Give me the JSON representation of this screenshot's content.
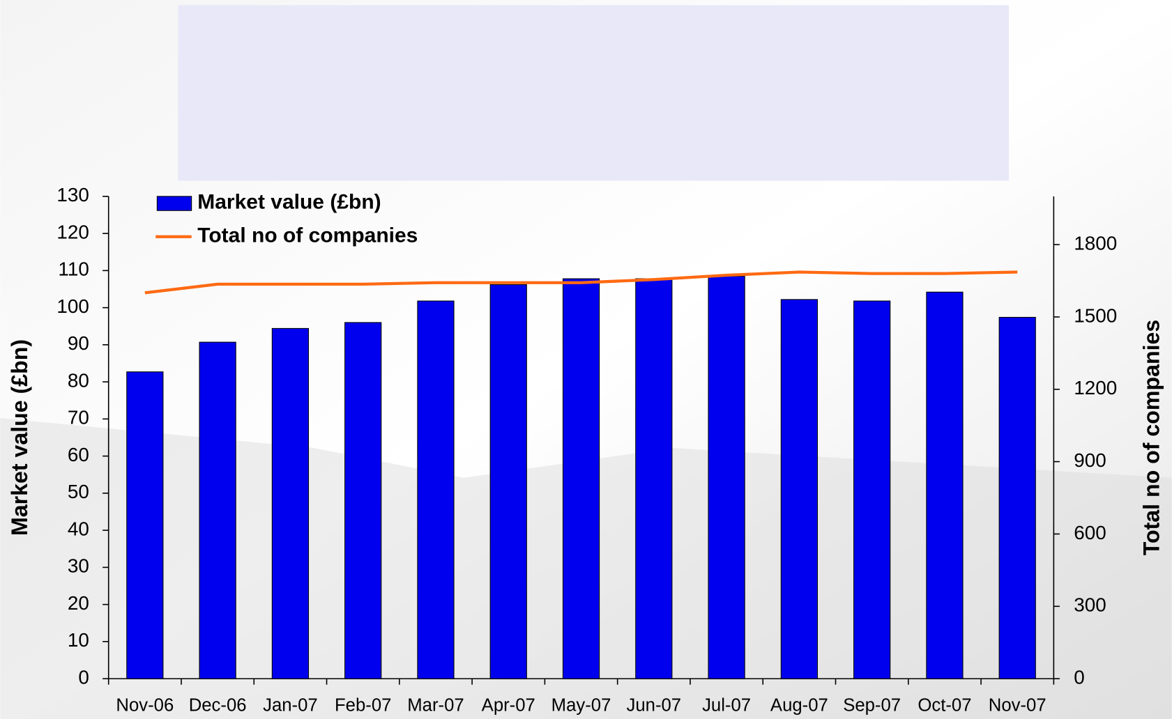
{
  "chart_data": {
    "type": "bar",
    "categories": [
      "Nov-06",
      "Dec-06",
      "Jan-07",
      "Feb-07",
      "Mar-07",
      "Apr-07",
      "May-07",
      "Jun-07",
      "Jul-07",
      "Aug-07",
      "Sep-07",
      "Oct-07",
      "Nov-07"
    ],
    "series": [
      {
        "name": "Market value (£bn)",
        "type": "bar",
        "color": "#0000ee",
        "values": [
          82.7,
          90.7,
          94.4,
          96,
          101.8,
          106.2,
          107.8,
          107.8,
          108.5,
          102.2,
          101.8,
          104.2,
          97.4
        ]
      },
      {
        "name": "Total no of companies",
        "type": "line",
        "axis": "y2",
        "color": "#ff6a13",
        "values": [
          1600,
          1636,
          1636,
          1636,
          1642,
          1642,
          1642,
          1655,
          1673,
          1686,
          1680,
          1680,
          1686
        ]
      }
    ],
    "y_label": "Market value (£bn)",
    "y2_label": "Total no of companies",
    "ylim": [
      0,
      130
    ],
    "yticks": [
      0,
      10,
      20,
      30,
      40,
      50,
      60,
      70,
      80,
      90,
      100,
      110,
      120,
      130
    ],
    "y2lim": [
      0,
      2000
    ],
    "y2ticks": [
      0,
      300,
      600,
      900,
      1200,
      1500,
      1800
    ],
    "legend": "top-left"
  }
}
